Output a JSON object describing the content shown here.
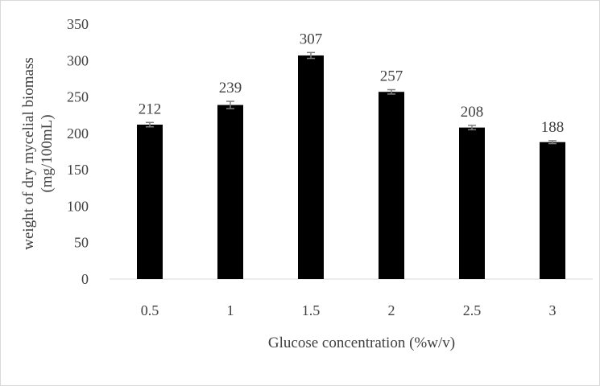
{
  "chart_data": {
    "type": "bar",
    "categories": [
      "0.5",
      "1",
      "1.5",
      "2",
      "2.5",
      "3"
    ],
    "values": [
      212,
      239,
      307,
      257,
      208,
      188
    ],
    "error": [
      3,
      5,
      4,
      3,
      3,
      2
    ],
    "data_labels": [
      "212",
      "239",
      "307",
      "257",
      "208",
      "188"
    ],
    "xlabel": "Glucose concentration (%w/v)",
    "ylabel_line1": "weight of dry mycelial biomass",
    "ylabel_line2": "(mg/100mL)",
    "ylim": [
      0,
      350
    ],
    "yticks": [
      0,
      50,
      100,
      150,
      200,
      250,
      300,
      350
    ],
    "ytick_labels": [
      "0",
      "50",
      "100",
      "150",
      "200",
      "250",
      "300",
      "350"
    ],
    "grid": false,
    "bar_color": "#000000",
    "errorbar_color": "#7f7f7f",
    "axis_color": "#d9d9d9",
    "text_color": "#404040"
  }
}
